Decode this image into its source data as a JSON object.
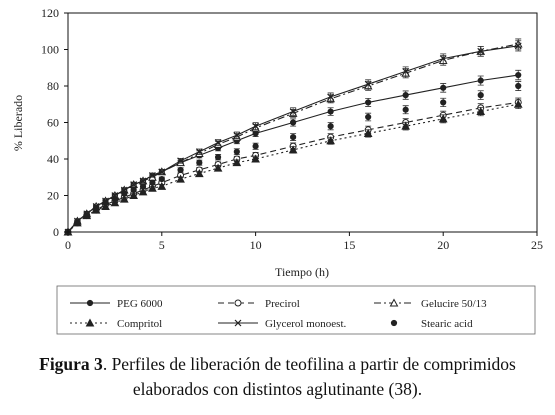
{
  "chart_data": {
    "type": "line",
    "xlabel": "Tiempo (h)",
    "ylabel": "% Liberado",
    "xlim": [
      0,
      25
    ],
    "ylim": [
      0,
      120
    ],
    "xticks": [
      0,
      5,
      10,
      15,
      20,
      25
    ],
    "yticks": [
      0,
      20,
      40,
      60,
      80,
      100,
      120
    ],
    "grid": false,
    "legend_position": "bottom",
    "series": [
      {
        "name": "PEG 6000",
        "line": "solid",
        "marker": "dot",
        "x": [
          0,
          0.5,
          1,
          1.5,
          2,
          2.5,
          3,
          3.5,
          4,
          4.5,
          5,
          6,
          7,
          8,
          9,
          10,
          12,
          14,
          16,
          18,
          20,
          22,
          24
        ],
        "y": [
          0,
          6,
          10,
          14,
          17,
          20,
          23,
          26,
          28,
          31,
          33,
          38,
          42,
          46,
          50,
          54,
          60,
          66,
          71,
          75,
          79,
          83,
          86
        ],
        "err": [
          0,
          0.5,
          0.6,
          0.7,
          0.8,
          0.8,
          0.9,
          1,
          1,
          1,
          1.2,
          1.3,
          1.4,
          1.5,
          1.6,
          1.7,
          2,
          2.1,
          2.2,
          2.3,
          2.4,
          2.5,
          2.6
        ]
      },
      {
        "name": "Precirol",
        "line": "dashed",
        "marker": "open-circle",
        "x": [
          0,
          0.5,
          1,
          1.5,
          2,
          2.5,
          3,
          3.5,
          4,
          4.5,
          5,
          6,
          7,
          8,
          9,
          10,
          12,
          14,
          16,
          18,
          20,
          22,
          24
        ],
        "y": [
          0,
          5,
          9,
          12,
          15,
          17,
          19,
          21,
          23,
          25,
          27,
          31,
          34,
          37,
          40,
          42,
          47,
          52,
          56,
          60,
          64,
          68,
          71
        ],
        "err": [
          0,
          0.5,
          0.6,
          0.7,
          0.8,
          0.8,
          0.9,
          1,
          1,
          1,
          1.1,
          1.2,
          1.3,
          1.4,
          1.5,
          1.6,
          1.8,
          1.9,
          2,
          2.1,
          2.2,
          2.3,
          2.4
        ]
      },
      {
        "name": "Gelucire 50/13",
        "line": "dash-dot",
        "marker": "open-triangle",
        "x": [
          0,
          0.5,
          1,
          1.5,
          2,
          2.5,
          3,
          3.5,
          4,
          4.5,
          5,
          6,
          7,
          8,
          9,
          10,
          12,
          14,
          16,
          18,
          20,
          22,
          24
        ],
        "y": [
          0,
          6,
          10,
          14,
          17,
          20,
          23,
          26,
          28,
          30,
          33,
          38,
          43,
          48,
          52,
          57,
          65,
          73,
          80,
          87,
          94,
          99,
          103
        ],
        "err": [
          0,
          0.5,
          0.6,
          0.7,
          0.8,
          0.8,
          0.9,
          1,
          1,
          1,
          1.2,
          1.3,
          1.5,
          1.6,
          1.8,
          1.9,
          2.1,
          2.2,
          2.4,
          2.5,
          2.6,
          2.7,
          2.8
        ]
      },
      {
        "name": "Compritol",
        "line": "dotted",
        "marker": "filled-triangle",
        "x": [
          0,
          0.5,
          1,
          1.5,
          2,
          2.5,
          3,
          3.5,
          4,
          4.5,
          5,
          6,
          7,
          8,
          9,
          10,
          12,
          14,
          16,
          18,
          20,
          22,
          24
        ],
        "y": [
          0,
          5,
          9,
          12,
          14,
          16,
          18,
          20,
          22,
          24,
          25,
          29,
          32,
          35,
          38,
          40,
          45,
          50,
          54,
          58,
          62,
          66,
          70
        ],
        "err": [
          0,
          0.5,
          0.6,
          0.7,
          0.8,
          0.8,
          0.9,
          1,
          1,
          1,
          1.1,
          1.2,
          1.3,
          1.4,
          1.5,
          1.6,
          1.8,
          1.9,
          2,
          2.1,
          2.2,
          2.3,
          2.4
        ]
      },
      {
        "name": "Glycerol monoest.",
        "line": "solid",
        "marker": "x",
        "x": [
          0,
          0.5,
          1,
          1.5,
          2,
          2.5,
          3,
          3.5,
          4,
          4.5,
          5,
          6,
          7,
          8,
          9,
          10,
          12,
          14,
          16,
          18,
          20,
          22,
          24
        ],
        "y": [
          0,
          6,
          10,
          14,
          17,
          20,
          23,
          26,
          28,
          31,
          33,
          39,
          44,
          49,
          53,
          58,
          66,
          74,
          81,
          88,
          95,
          99,
          102
        ],
        "err": [
          0,
          0.5,
          0.6,
          0.7,
          0.8,
          0.8,
          0.9,
          1,
          1,
          1,
          1.2,
          1.3,
          1.5,
          1.6,
          1.8,
          1.9,
          2.1,
          2.2,
          2.4,
          2.5,
          2.6,
          2.7,
          2.8
        ]
      },
      {
        "name": "Stearic acid",
        "line": "none",
        "marker": "dot",
        "x": [
          0,
          0.5,
          1,
          1.5,
          2,
          2.5,
          3,
          3.5,
          4,
          4.5,
          5,
          6,
          7,
          8,
          9,
          10,
          12,
          14,
          16,
          18,
          20,
          22,
          24
        ],
        "y": [
          0,
          5,
          9,
          13,
          16,
          18,
          21,
          23,
          25,
          27,
          29,
          34,
          38,
          41,
          44,
          47,
          52,
          58,
          63,
          67,
          71,
          75,
          80
        ],
        "err": [
          0,
          0.5,
          0.6,
          0.7,
          0.8,
          0.8,
          0.9,
          1,
          1,
          1,
          1.1,
          1.2,
          1.4,
          1.5,
          1.6,
          1.7,
          1.9,
          2,
          2.1,
          2.2,
          2.3,
          2.4,
          2.5
        ]
      }
    ]
  },
  "caption": {
    "label": "Figura 3",
    "text": ". Perfiles de liberación de teofilina a partir de comprimidos elaborados con distintos aglutinante (38)."
  }
}
